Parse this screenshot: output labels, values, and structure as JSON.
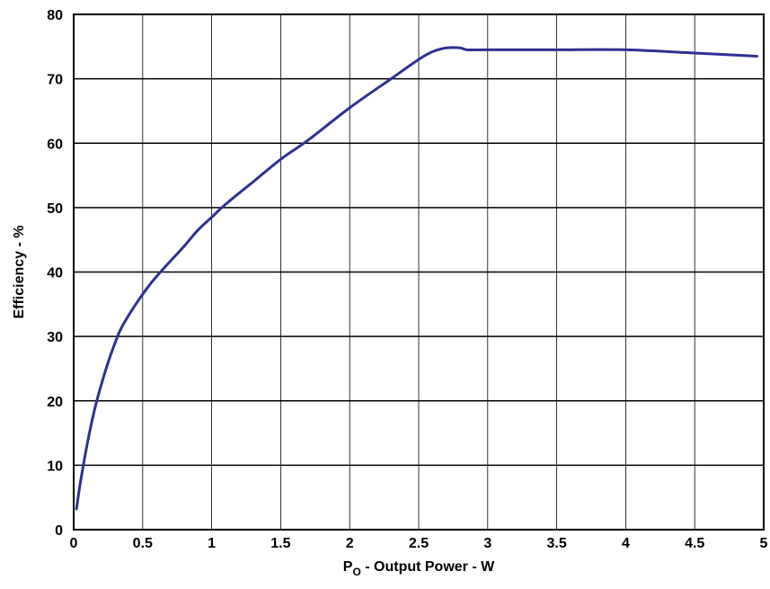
{
  "chart_data": {
    "type": "line",
    "title": "",
    "xlabel": "P",
    "xlabel_sub": "O",
    "xlabel_rest": " - Output Power - W",
    "ylabel": "Efficiency - %",
    "xlim": [
      0,
      5
    ],
    "ylim": [
      0,
      80
    ],
    "x_ticks": [
      0,
      0.5,
      1,
      1.5,
      2,
      2.5,
      3,
      3.5,
      4,
      4.5,
      5
    ],
    "x_tick_labels": [
      "0",
      "0.5",
      "1",
      "1.5",
      "2",
      "2.5",
      "3",
      "3.5",
      "4",
      "4.5",
      "5"
    ],
    "y_ticks": [
      0,
      10,
      20,
      30,
      40,
      50,
      60,
      70,
      80
    ],
    "y_tick_labels": [
      "0",
      "10",
      "20",
      "30",
      "40",
      "50",
      "60",
      "70",
      "80"
    ],
    "grid": true,
    "series": [
      {
        "color": "#2e3192",
        "x": [
          0.02,
          0.05,
          0.1,
          0.15,
          0.2,
          0.25,
          0.3,
          0.35,
          0.45,
          0.55,
          0.65,
          0.8,
          0.9,
          1.0,
          1.1,
          1.3,
          1.5,
          1.7,
          2.0,
          2.3,
          2.5,
          2.6,
          2.7,
          2.8,
          2.85,
          3.0,
          3.5,
          4.0,
          4.5,
          4.95
        ],
        "y": [
          3.2,
          7.5,
          13.5,
          18.5,
          22.5,
          26,
          29,
          31.5,
          35,
          38,
          40.5,
          44,
          46.5,
          48.5,
          50.5,
          54,
          57.5,
          60.5,
          65.5,
          70,
          73,
          74.2,
          74.8,
          74.8,
          74.5,
          74.5,
          74.5,
          74.5,
          74.0,
          73.5
        ]
      }
    ]
  }
}
